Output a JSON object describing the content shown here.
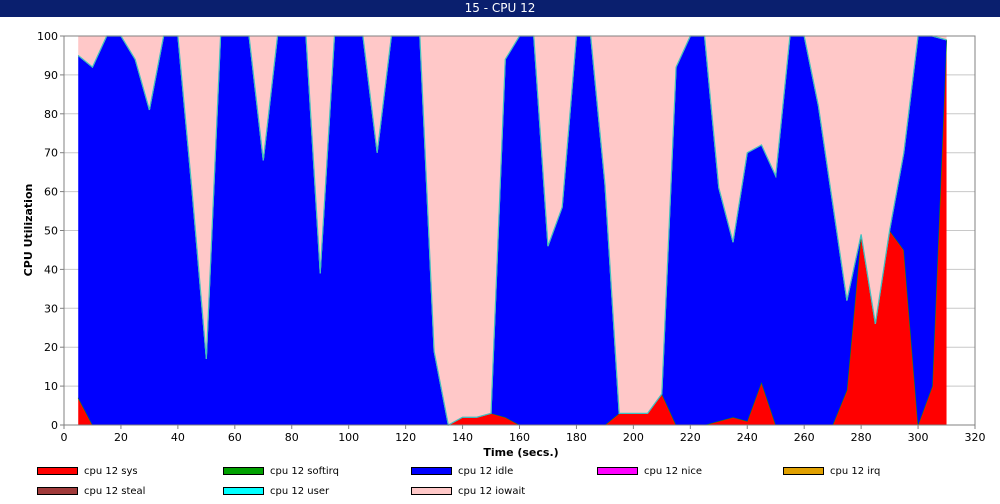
{
  "window": {
    "title": "15 - CPU 12"
  },
  "chart_data": {
    "type": "area",
    "stacked": true,
    "title": "",
    "xlabel": "Time (secs.)",
    "ylabel": "CPU Utilization",
    "xlim": [
      0,
      320
    ],
    "ylim": [
      0,
      100
    ],
    "xticks": [
      0,
      20,
      40,
      60,
      80,
      100,
      120,
      140,
      160,
      180,
      200,
      220,
      240,
      260,
      280,
      300,
      320
    ],
    "yticks": [
      0,
      10,
      20,
      30,
      40,
      50,
      60,
      70,
      80,
      90,
      100
    ],
    "grid": true,
    "legend_position": "bottom",
    "x": [
      5,
      10,
      15,
      20,
      25,
      30,
      35,
      40,
      45,
      50,
      55,
      60,
      65,
      70,
      75,
      80,
      85,
      90,
      95,
      100,
      105,
      110,
      115,
      120,
      125,
      130,
      135,
      140,
      145,
      150,
      155,
      160,
      165,
      170,
      175,
      180,
      185,
      190,
      195,
      200,
      205,
      210,
      215,
      220,
      225,
      230,
      235,
      240,
      245,
      250,
      255,
      260,
      265,
      270,
      275,
      280,
      285,
      290,
      295,
      300,
      305,
      310
    ],
    "series": [
      {
        "name": "cpu 12 sys",
        "color": "#ff0000",
        "values": [
          7,
          0,
          0,
          0,
          0,
          0,
          0,
          0,
          0,
          0,
          0,
          0,
          0,
          0,
          0,
          0,
          0,
          0,
          0,
          0,
          0,
          0,
          0,
          0,
          0,
          0,
          0,
          2,
          2,
          3,
          2,
          0,
          0,
          0,
          0,
          0,
          0,
          0,
          3,
          3,
          3,
          8,
          0,
          0,
          0,
          1,
          2,
          1,
          11,
          0,
          0,
          0,
          0,
          0,
          9,
          49,
          26,
          50,
          45,
          0,
          10,
          99
        ]
      },
      {
        "name": "cpu 12 softirq",
        "color": "#00a000",
        "values": [
          0,
          0,
          0,
          0,
          0,
          0,
          0,
          0,
          0,
          0,
          0,
          0,
          0,
          0,
          0,
          0,
          0,
          0,
          0,
          0,
          0,
          0,
          0,
          0,
          0,
          0,
          0,
          0,
          0,
          0,
          0,
          0,
          0,
          0,
          0,
          0,
          0,
          0,
          0,
          0,
          0,
          0,
          0,
          0,
          0,
          0,
          0,
          0,
          0,
          0,
          0,
          0,
          0,
          0,
          0,
          0,
          0,
          0,
          0,
          0,
          0,
          0
        ]
      },
      {
        "name": "cpu 12 idle",
        "color": "#0000ff",
        "values": [
          88,
          92,
          100,
          100,
          94,
          81,
          100,
          100,
          60,
          17,
          100,
          100,
          100,
          68,
          100,
          100,
          100,
          39,
          100,
          100,
          100,
          70,
          100,
          100,
          100,
          19,
          0,
          0,
          0,
          0,
          92,
          100,
          100,
          46,
          56,
          100,
          100,
          62,
          0,
          0,
          0,
          0,
          92,
          100,
          100,
          60,
          45,
          69,
          61,
          64,
          100,
          100,
          82,
          57,
          23,
          0,
          0,
          0,
          25,
          100,
          90,
          0
        ]
      },
      {
        "name": "cpu 12 nice",
        "color": "#ff00ff",
        "values": [
          0,
          0,
          0,
          0,
          0,
          0,
          0,
          0,
          0,
          0,
          0,
          0,
          0,
          0,
          0,
          0,
          0,
          0,
          0,
          0,
          0,
          0,
          0,
          0,
          0,
          0,
          0,
          0,
          0,
          0,
          0,
          0,
          0,
          0,
          0,
          0,
          0,
          0,
          0,
          0,
          0,
          0,
          0,
          0,
          0,
          0,
          0,
          0,
          0,
          0,
          0,
          0,
          0,
          0,
          0,
          0,
          0,
          0,
          0,
          0,
          0,
          0
        ]
      },
      {
        "name": "cpu 12 irq",
        "color": "#e0a000",
        "values": [
          0,
          0,
          0,
          0,
          0,
          0,
          0,
          0,
          0,
          0,
          0,
          0,
          0,
          0,
          0,
          0,
          0,
          0,
          0,
          0,
          0,
          0,
          0,
          0,
          0,
          0,
          0,
          0,
          0,
          0,
          0,
          0,
          0,
          0,
          0,
          0,
          0,
          0,
          0,
          0,
          0,
          0,
          0,
          0,
          0,
          0,
          0,
          0,
          0,
          0,
          0,
          0,
          0,
          0,
          0,
          0,
          0,
          0,
          0,
          0,
          0,
          0
        ]
      },
      {
        "name": "cpu 12 steal",
        "color": "#a03a3a",
        "values": [
          0,
          0,
          0,
          0,
          0,
          0,
          0,
          0,
          0,
          0,
          0,
          0,
          0,
          0,
          0,
          0,
          0,
          0,
          0,
          0,
          0,
          0,
          0,
          0,
          0,
          0,
          0,
          0,
          0,
          0,
          0,
          0,
          0,
          0,
          0,
          0,
          0,
          0,
          0,
          0,
          0,
          0,
          0,
          0,
          0,
          0,
          0,
          0,
          0,
          0,
          0,
          0,
          0,
          0,
          0,
          0,
          0,
          0,
          0,
          0,
          0,
          0
        ]
      },
      {
        "name": "cpu 12 user",
        "color": "#00ffff",
        "values": [
          0,
          0,
          0,
          0,
          0,
          0,
          0,
          0,
          0,
          0,
          0,
          0,
          0,
          0,
          0,
          0,
          0,
          0,
          0,
          0,
          0,
          0,
          0,
          0,
          0,
          0,
          0,
          0,
          0,
          0,
          0,
          0,
          0,
          0,
          0,
          0,
          0,
          0,
          0,
          0,
          0,
          0,
          0,
          0,
          0,
          0,
          0,
          0,
          0,
          0,
          0,
          0,
          0,
          0,
          0,
          0,
          0,
          0,
          0,
          0,
          0,
          0
        ]
      },
      {
        "name": "cpu 12 iowait",
        "color": "#ffc8c8",
        "values": [
          5,
          8,
          0,
          0,
          6,
          19,
          0,
          0,
          40,
          83,
          0,
          0,
          0,
          32,
          0,
          0,
          0,
          61,
          0,
          0,
          0,
          30,
          0,
          0,
          0,
          81,
          100,
          98,
          98,
          97,
          6,
          0,
          0,
          54,
          44,
          0,
          0,
          38,
          97,
          97,
          97,
          92,
          8,
          0,
          0,
          39,
          53,
          30,
          28,
          36,
          0,
          0,
          18,
          43,
          68,
          51,
          74,
          50,
          30,
          0,
          0,
          1
        ]
      }
    ],
    "legend_order": [
      "cpu 12 sys",
      "cpu 12 softirq",
      "cpu 12 idle",
      "cpu 12 nice",
      "cpu 12 irq",
      "cpu 12 steal",
      "cpu 12 user",
      "cpu 12 iowait"
    ]
  }
}
